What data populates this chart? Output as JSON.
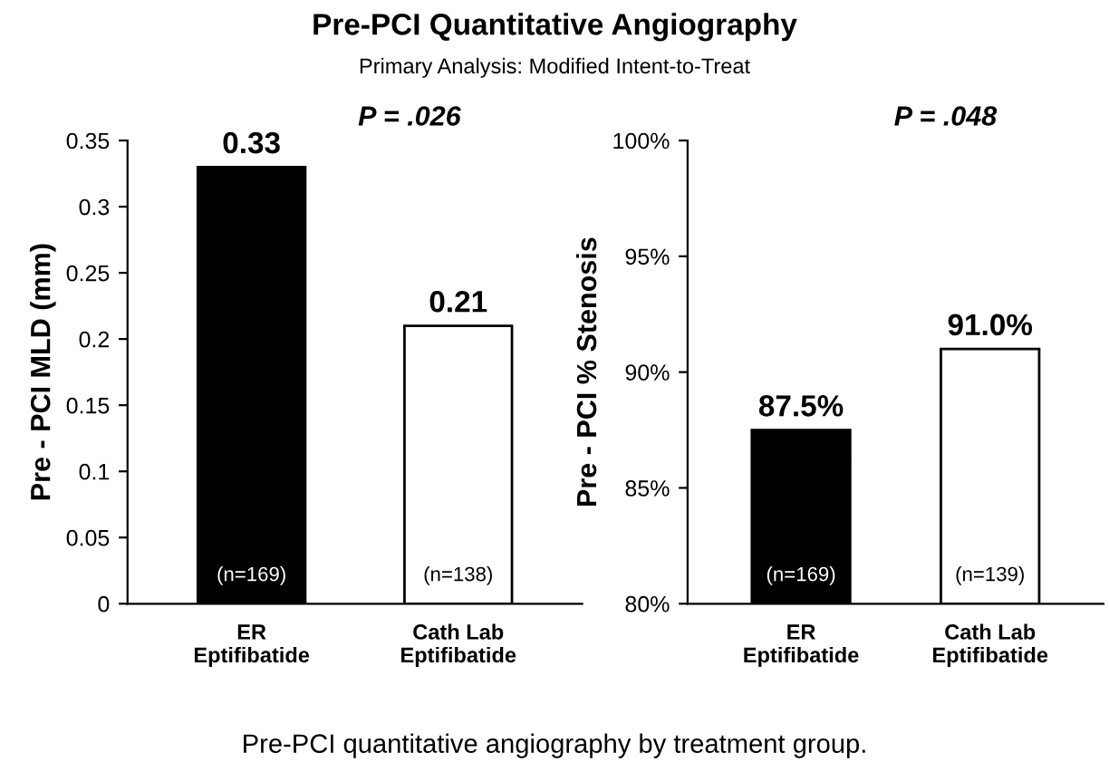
{
  "chart_data": [
    {
      "type": "bar",
      "title": "Pre-PCI Quantitative Angiography",
      "subtitle": "Primary Analysis: Modified Intent-to-Treat",
      "ylabel": "Pre - PCI MLD (mm)",
      "categories": [
        "ER\nEptifibatide",
        "Cath Lab\nEptifibatide"
      ],
      "values": [
        0.33,
        0.21
      ],
      "colors": [
        "#000000",
        "#ffffff"
      ],
      "value_labels": [
        "0.33",
        "0.21"
      ],
      "ylim": [
        0,
        0.35
      ],
      "yticks": [
        0,
        0.05,
        0.1,
        0.15,
        0.2,
        0.25,
        0.3,
        0.35
      ],
      "annotations": [
        "P = .026",
        "(n=169)",
        "(n=138)"
      ]
    },
    {
      "type": "bar",
      "ylabel": "Pre - PCI % Stenosis",
      "categories": [
        "ER\nEptifibatide",
        "Cath Lab\nEptifibatide"
      ],
      "values": [
        87.5,
        91.0
      ],
      "colors": [
        "#000000",
        "#ffffff"
      ],
      "value_labels": [
        "87.5%",
        "91.0%"
      ],
      "ylim": [
        80,
        100
      ],
      "yticks": [
        {
          "value": 80,
          "label": "80%"
        },
        {
          "value": 85,
          "label": "85%"
        },
        {
          "value": 90,
          "label": "90%"
        },
        {
          "value": 95,
          "label": "95%"
        },
        {
          "value": 100,
          "label": "100%"
        }
      ],
      "annotations": [
        "P = .048",
        "(n=169)",
        "(n=139)",
        "Pre-PCI quantitative angiography by treatment group."
      ]
    }
  ]
}
